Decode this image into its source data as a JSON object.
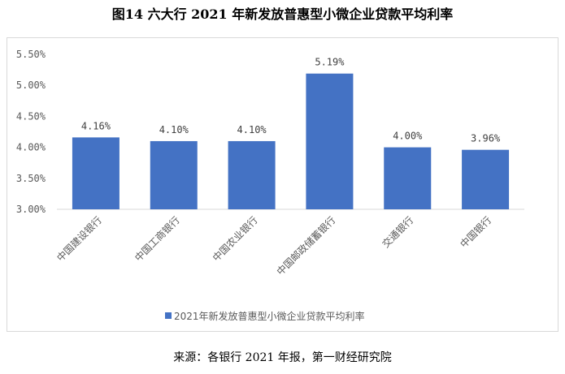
{
  "figure_title": "图14 六大行 2021 年新发放普惠型小微企业贷款平均利率",
  "source_note": "来源：各银行 2021 年报，第一财经研究院",
  "colors": {
    "bar": "#4472c4",
    "axis": "#d9d9d9",
    "text": "#595959"
  },
  "chart_data": {
    "type": "bar",
    "categories": [
      "中国建设银行",
      "中国工商银行",
      "中国农业银行",
      "中国邮政储蓄银行",
      "交通银行",
      "中国银行"
    ],
    "series": [
      {
        "name": "2021年新发放普惠型小微企业贷款平均利率",
        "values": [
          4.16,
          4.1,
          4.1,
          5.19,
          4.0,
          3.96
        ]
      }
    ],
    "data_labels": [
      "4.16%",
      "4.10%",
      "4.10%",
      "5.19%",
      "4.00%",
      "3.96%"
    ],
    "ylim": [
      3.0,
      5.5
    ],
    "yticks": [
      3.0,
      3.5,
      4.0,
      4.5,
      5.0,
      5.5
    ],
    "ytick_labels": [
      "3.00%",
      "3.50%",
      "4.00%",
      "4.50%",
      "5.00%",
      "5.50%"
    ],
    "grid": false,
    "legend_position": "bottom"
  }
}
